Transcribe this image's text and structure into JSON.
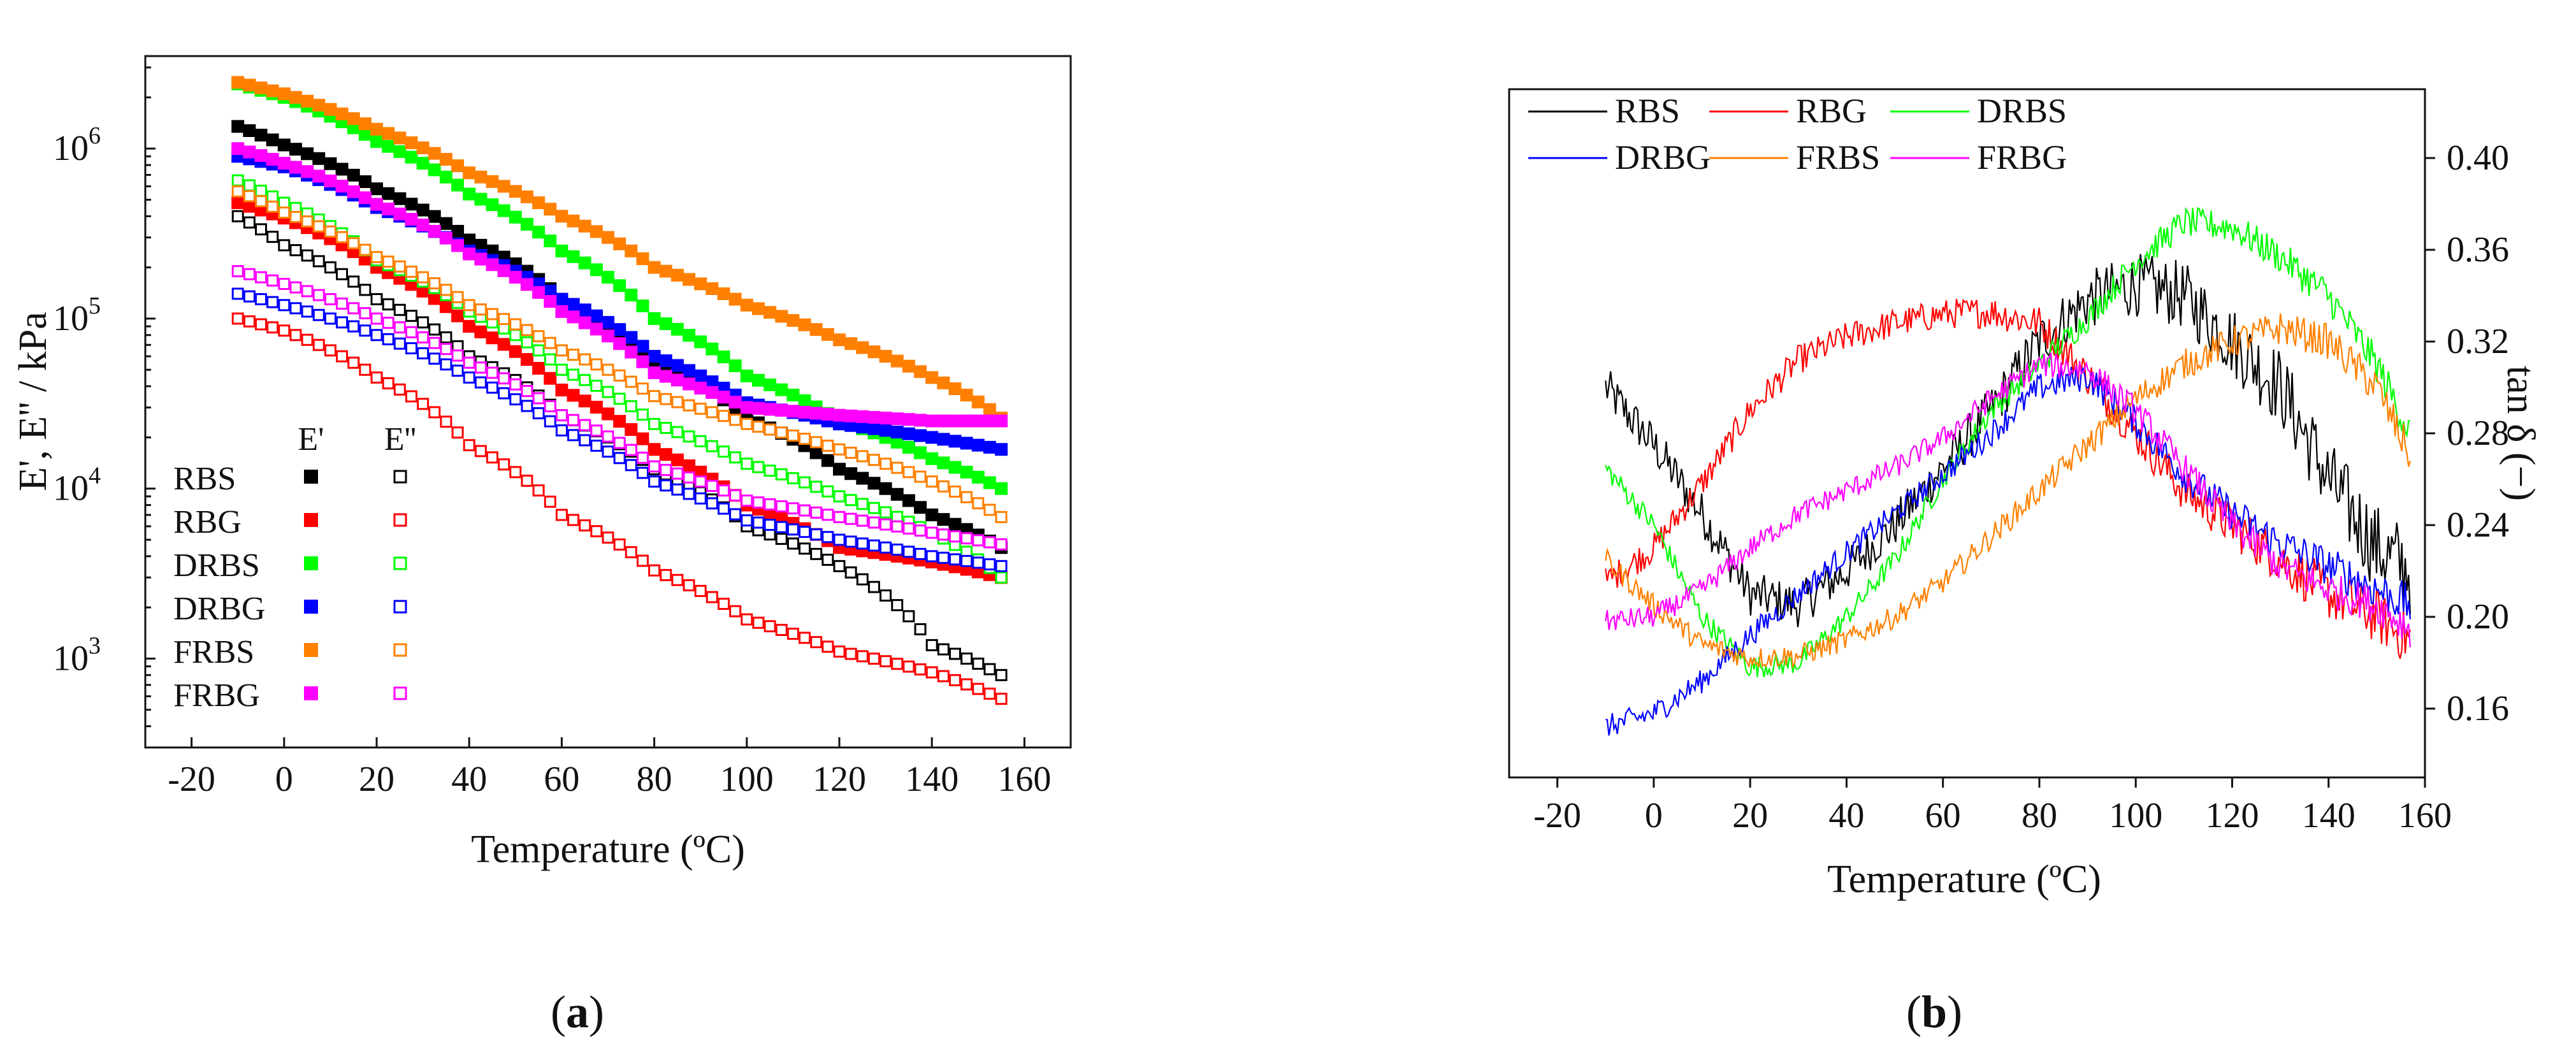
{
  "panel_labels": {
    "a": {
      "open": "(",
      "letter": "a",
      "close": ")"
    },
    "b": {
      "open": "(",
      "letter": "b",
      "close": ")"
    }
  },
  "chart_data": [
    {
      "type": "scatter",
      "panel": "a",
      "xlabel": "Temperature (ºC)",
      "ylabel": "E', E'' / kPa",
      "yscale": "log",
      "xlim": [
        -30,
        170
      ],
      "ylim": [
        300,
        3500000
      ],
      "xticks": [
        -20,
        0,
        20,
        40,
        60,
        80,
        100,
        120,
        140,
        160
      ],
      "xtick_labels": [
        "-20",
        "0",
        "20",
        "40",
        "60",
        "80",
        "100",
        "120",
        "140",
        "160"
      ],
      "yticks": [
        1000,
        10000,
        100000,
        1000000
      ],
      "ytick_labels": [
        {
          "base": "10",
          "exp": "3"
        },
        {
          "base": "10",
          "exp": "4"
        },
        {
          "base": "10",
          "exp": "5"
        },
        {
          "base": "10",
          "exp": "6"
        }
      ],
      "legend": {
        "position": "bottom-left",
        "header_filled": "E'",
        "header_open": "E''"
      },
      "x_knots": [
        -10,
        0,
        20,
        40,
        60,
        80,
        100,
        120,
        140,
        155
      ],
      "series": [
        {
          "name": "RBS",
          "color": "#000000",
          "E_storage": [
            1350000,
            1050000,
            580000,
            290000,
            130000,
            55000,
            26000,
            13000,
            7000,
            4500
          ],
          "E_loss": [
            400000,
            270000,
            130000,
            60000,
            27000,
            13000,
            6000,
            3500,
            1200,
            800
          ]
        },
        {
          "name": "RBG",
          "color": "#ff0000",
          "E_storage": [
            480000,
            390000,
            200000,
            90000,
            38000,
            17000,
            8000,
            4500,
            3700,
            3000
          ],
          "E_loss": [
            100000,
            85000,
            45000,
            18000,
            7000,
            3300,
            1700,
            1100,
            830,
            580
          ]
        },
        {
          "name": "DRBS",
          "color": "#00ff00",
          "E_storage": [
            2400000,
            2000000,
            1100000,
            540000,
            250000,
            100000,
            46000,
            25000,
            15000,
            10000
          ],
          "E_loss": [
            650000,
            480000,
            220000,
            110000,
            50000,
            24000,
            14000,
            9000,
            5500,
            3000
          ]
        },
        {
          "name": "DRBG",
          "color": "#0000ff",
          "E_storage": [
            900000,
            780000,
            450000,
            250000,
            130000,
            60000,
            32000,
            24000,
            20000,
            17000
          ],
          "E_loss": [
            140000,
            120000,
            80000,
            45000,
            22000,
            11000,
            6500,
            5000,
            4000,
            3500
          ]
        },
        {
          "name": "FRBS",
          "color": "#ff8000",
          "E_storage": [
            2450000,
            2100000,
            1300000,
            720000,
            400000,
            200000,
            120000,
            75000,
            45000,
            26000
          ],
          "E_loss": [
            560000,
            420000,
            230000,
            120000,
            65000,
            35000,
            24000,
            17000,
            11000,
            6800
          ]
        },
        {
          "name": "FRBG",
          "color": "#ff00ff",
          "E_storage": [
            1000000,
            820000,
            470000,
            240000,
            110000,
            48000,
            30000,
            27000,
            25000,
            25000
          ],
          "E_loss": [
            190000,
            160000,
            100000,
            55000,
            27000,
            13500,
            8500,
            6800,
            5500,
            4700
          ]
        }
      ]
    },
    {
      "type": "line",
      "panel": "b",
      "xlabel": "Temperature (ºC)",
      "ylabel": "tan δ (−)",
      "xlim": [
        -30,
        160
      ],
      "ylim": [
        0.13,
        0.43
      ],
      "xticks": [
        -20,
        0,
        20,
        40,
        60,
        80,
        100,
        120,
        140,
        160
      ],
      "xtick_labels": [
        "-20",
        "0",
        "20",
        "40",
        "60",
        "80",
        "100",
        "120",
        "140",
        "160"
      ],
      "yticks": [
        0.16,
        0.2,
        0.24,
        0.28,
        0.32,
        0.36,
        0.4
      ],
      "ytick_labels": [
        "0.16",
        "0.20",
        "0.24",
        "0.28",
        "0.32",
        "0.36",
        "0.40"
      ],
      "legend": {
        "position": "top-left",
        "columns": 3
      },
      "series": [
        {
          "name": "RBS",
          "color": "#000000",
          "noise": 0.018,
          "x": [
            -10,
            0,
            10,
            20,
            30,
            40,
            50,
            60,
            70,
            80,
            90,
            100,
            110,
            120,
            130,
            140,
            150,
            157
          ],
          "y": [
            0.3,
            0.275,
            0.245,
            0.21,
            0.205,
            0.22,
            0.24,
            0.265,
            0.29,
            0.32,
            0.338,
            0.345,
            0.34,
            0.32,
            0.3,
            0.26,
            0.23,
            0.22
          ]
        },
        {
          "name": "RBG",
          "color": "#ff0000",
          "noise": 0.01,
          "x": [
            -10,
            0,
            10,
            20,
            30,
            40,
            50,
            60,
            70,
            80,
            90,
            100,
            110,
            120,
            130,
            140,
            150,
            157
          ],
          "y": [
            0.215,
            0.23,
            0.258,
            0.29,
            0.312,
            0.322,
            0.328,
            0.332,
            0.333,
            0.328,
            0.305,
            0.28,
            0.255,
            0.24,
            0.225,
            0.21,
            0.2,
            0.19
          ]
        },
        {
          "name": "DRBS",
          "color": "#00ff00",
          "noise": 0.006,
          "x": [
            -10,
            0,
            10,
            20,
            30,
            40,
            50,
            60,
            70,
            80,
            90,
            100,
            110,
            120,
            130,
            140,
            150,
            157
          ],
          "y": [
            0.265,
            0.24,
            0.2,
            0.178,
            0.18,
            0.2,
            0.225,
            0.26,
            0.29,
            0.31,
            0.33,
            0.355,
            0.372,
            0.37,
            0.357,
            0.34,
            0.31,
            0.28
          ]
        },
        {
          "name": "DRBG",
          "color": "#0000ff",
          "noise": 0.007,
          "x": [
            -10,
            0,
            10,
            20,
            30,
            40,
            50,
            60,
            70,
            80,
            90,
            100,
            110,
            120,
            130,
            140,
            150,
            157
          ],
          "y": [
            0.152,
            0.158,
            0.172,
            0.192,
            0.21,
            0.228,
            0.245,
            0.262,
            0.28,
            0.3,
            0.305,
            0.285,
            0.262,
            0.245,
            0.232,
            0.222,
            0.212,
            0.205
          ]
        },
        {
          "name": "FRBS",
          "color": "#ff8000",
          "noise": 0.006,
          "x": [
            -10,
            0,
            10,
            20,
            30,
            40,
            50,
            60,
            70,
            80,
            90,
            100,
            110,
            120,
            130,
            140,
            150,
            157
          ],
          "y": [
            0.225,
            0.205,
            0.188,
            0.182,
            0.183,
            0.19,
            0.2,
            0.215,
            0.235,
            0.255,
            0.275,
            0.295,
            0.31,
            0.32,
            0.326,
            0.32,
            0.3,
            0.27
          ]
        },
        {
          "name": "FRBG",
          "color": "#ff00ff",
          "noise": 0.006,
          "x": [
            -10,
            0,
            10,
            20,
            30,
            40,
            50,
            60,
            70,
            80,
            90,
            100,
            110,
            120,
            130,
            140,
            150,
            157
          ],
          "y": [
            0.198,
            0.2,
            0.212,
            0.23,
            0.245,
            0.255,
            0.265,
            0.278,
            0.295,
            0.31,
            0.308,
            0.29,
            0.265,
            0.24,
            0.222,
            0.212,
            0.205,
            0.195
          ]
        }
      ]
    }
  ]
}
